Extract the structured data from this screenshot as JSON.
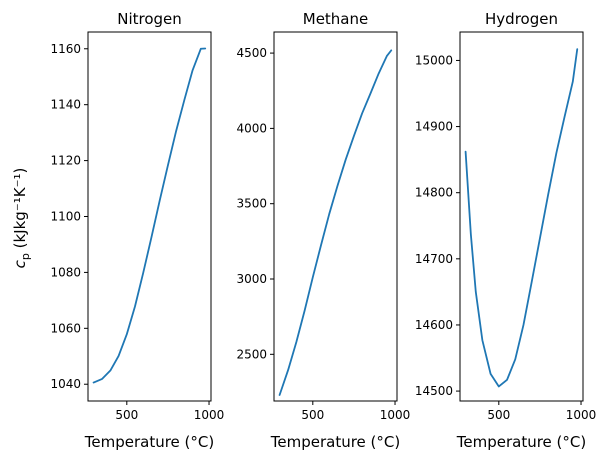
{
  "figure": {
    "shared_ylabel": "c_p (kJkg⁻¹K⁻¹)",
    "line_color": "#1f77b4"
  },
  "chart_data": [
    {
      "type": "line",
      "title": "Nitrogen",
      "xlabel": "Temperature (°C)",
      "ylabel": "c_p (kJkg⁻¹K⁻¹)",
      "xlim": [
        264,
        1012
      ],
      "ylim": [
        1034,
        1166
      ],
      "xticks": [
        500,
        1000
      ],
      "xtick_labels": [
        "500",
        "1000"
      ],
      "yticks": [
        1040,
        1060,
        1080,
        1100,
        1120,
        1140,
        1160
      ],
      "ytick_labels": [
        "1040",
        "1060",
        "1080",
        "1100",
        "1120",
        "1140",
        "1160"
      ],
      "grid": false,
      "series": [
        {
          "color": "#1f77b4",
          "x": [
            298,
            350,
            400,
            450,
            500,
            550,
            600,
            650,
            700,
            750,
            800,
            850,
            900,
            950,
            977
          ],
          "y": [
            1040.6,
            1041.9,
            1044.9,
            1050.1,
            1057.9,
            1067.9,
            1079.9,
            1092.6,
            1105.7,
            1118.3,
            1130.6,
            1141.7,
            1152.3,
            1160.0,
            1160.1
          ]
        }
      ]
    },
    {
      "type": "line",
      "title": "Methane",
      "xlabel": "Temperature (°C)",
      "ylabel": "",
      "xlim": [
        264,
        1012
      ],
      "ylim": [
        2190,
        4640
      ],
      "xticks": [
        500,
        1000
      ],
      "xtick_labels": [
        "500",
        "1000"
      ],
      "yticks": [
        2500,
        3000,
        3500,
        4000,
        4500
      ],
      "ytick_labels": [
        "2500",
        "3000",
        "3500",
        "4000",
        "4500"
      ],
      "grid": false,
      "series": [
        {
          "color": "#1f77b4",
          "x": [
            298,
            350,
            400,
            450,
            500,
            550,
            600,
            650,
            700,
            750,
            800,
            850,
            900,
            950,
            977
          ],
          "y": [
            2230,
            2396,
            2582,
            2789,
            3012,
            3225,
            3432,
            3618,
            3793,
            3950,
            4100,
            4230,
            4363,
            4480,
            4518
          ]
        }
      ]
    },
    {
      "type": "line",
      "title": "Hydrogen",
      "xlabel": "Temperature (°C)",
      "ylabel": "",
      "xlim": [
        264,
        1012
      ],
      "ylim": [
        14485,
        15043
      ],
      "xticks": [
        500,
        1000
      ],
      "xtick_labels": [
        "500",
        "1000"
      ],
      "yticks": [
        14500,
        14600,
        14700,
        14800,
        14900,
        15000
      ],
      "ytick_labels": [
        "14500",
        "14600",
        "14700",
        "14800",
        "14900",
        "15000"
      ],
      "grid": false,
      "series": [
        {
          "color": "#1f77b4",
          "x": [
            298,
            330,
            360,
            400,
            450,
            500,
            550,
            600,
            650,
            700,
            750,
            800,
            850,
            900,
            950,
            977
          ],
          "y": [
            14862,
            14737,
            14650,
            14577,
            14526,
            14507,
            14517,
            14548,
            14600,
            14665,
            14731,
            14797,
            14860,
            14915,
            14968,
            15017
          ]
        }
      ]
    }
  ]
}
